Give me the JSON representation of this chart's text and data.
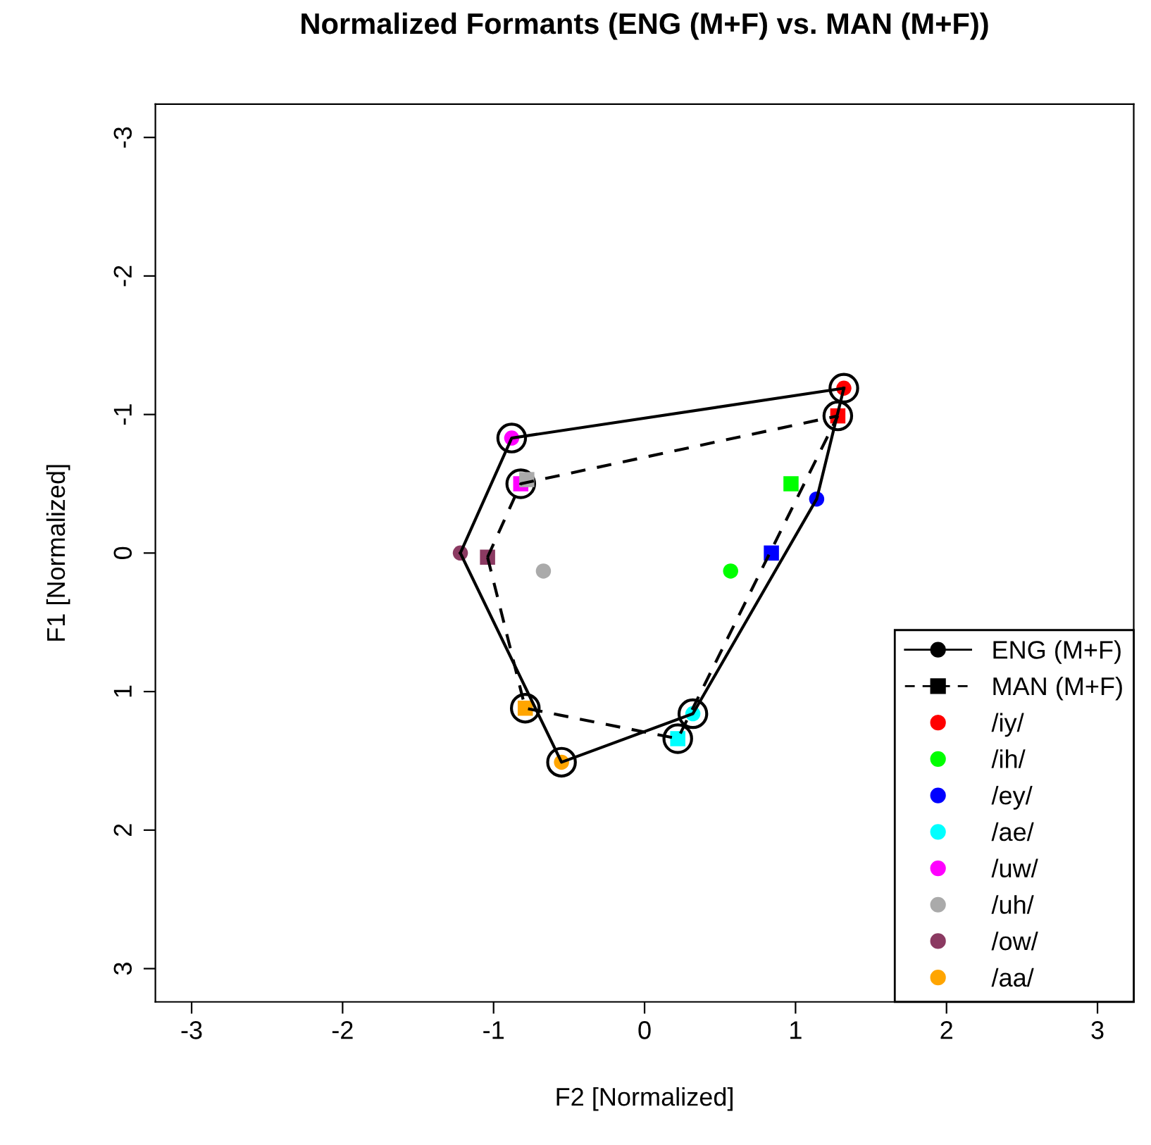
{
  "chart_data": {
    "type": "scatter",
    "title": "Normalized Formants (ENG (M+F) vs. MAN (M+F))",
    "xlabel": "F2 [Normalized]",
    "ylabel": "F1 [Normalized]",
    "xlim": [
      -3.24,
      3.24
    ],
    "ylim": [
      3.24,
      -3.24
    ],
    "xticks": [
      -3,
      -2,
      -1,
      0,
      1,
      2,
      3
    ],
    "yticks": [
      -3,
      -2,
      -1,
      0,
      1,
      2,
      3
    ],
    "grid": false,
    "legend": "bottom right",
    "series": [
      {
        "name": "ENG (M+F)",
        "type": "line",
        "color": "#000000",
        "line_style": "solid",
        "x": [
          -1.22,
          -0.55,
          0.32,
          1.14,
          1.32
        ],
        "values": [
          0.0,
          1.51,
          1.16,
          -0.39,
          -1.19
        ]
      },
      {
        "type": "line",
        "color": "#000000",
        "line_style": "solid",
        "x": [
          -1.22,
          -0.88,
          1.32
        ],
        "values": [
          0.0,
          -0.83,
          -1.19
        ]
      },
      {
        "name": "MAN (M+F)",
        "type": "line",
        "color": "#000000",
        "line_style": "dashed",
        "x": [
          -1.04,
          -0.79,
          0.22,
          1.28
        ],
        "values": [
          0.03,
          1.12,
          1.34,
          -0.99
        ]
      },
      {
        "type": "line",
        "color": "#000000",
        "line_style": "dashed",
        "x": [
          -1.04,
          -0.82,
          1.28
        ],
        "values": [
          0.03,
          -0.5,
          -0.99
        ]
      },
      {
        "color": "#000000",
        "marker": "circle",
        "x": [
          1.32,
          1.28,
          0.32,
          0.22,
          -0.55,
          -0.79,
          -0.88,
          -0.82
        ],
        "values": [
          -1.19,
          -0.99,
          1.16,
          1.34,
          1.51,
          1.12,
          -0.83,
          -0.5
        ]
      },
      {
        "marker": "square",
        "colors": [
          "#ff0000",
          "#00ff00",
          "#0000ff",
          "#00ffff",
          "#ff00ff",
          "#aaaaaa",
          "#8b3a62",
          "#ffa500"
        ],
        "x": [
          1.28,
          0.97,
          0.84,
          0.22,
          -0.82,
          -0.78,
          -1.04,
          -0.79
        ],
        "values": [
          -0.99,
          -0.5,
          0.0,
          1.34,
          -0.5,
          -0.53,
          0.03,
          1.12
        ]
      },
      {
        "name": "/iy/",
        "color": "#ff0000",
        "marker": "circle",
        "x": [
          1.32
        ],
        "values": [
          -1.19
        ]
      },
      {
        "name": "/ih/",
        "color": "#00ff00",
        "marker": "circle",
        "x": [
          0.57
        ],
        "values": [
          0.13
        ]
      },
      {
        "name": "/ey/",
        "color": "#0000ff",
        "marker": "circle",
        "x": [
          1.14
        ],
        "values": [
          -0.39
        ]
      },
      {
        "name": "/ae/",
        "color": "#00ffff",
        "marker": "circle",
        "x": [
          0.32
        ],
        "values": [
          1.16
        ]
      },
      {
        "name": "/uw/",
        "color": "#ff00ff",
        "marker": "circle",
        "x": [
          -0.88
        ],
        "values": [
          -0.83
        ]
      },
      {
        "name": "/uh/",
        "color": "#aaaaaa",
        "marker": "circle",
        "x": [
          -0.67
        ],
        "values": [
          0.13
        ]
      },
      {
        "name": "/ow/",
        "color": "#8b3a62",
        "marker": "circle",
        "x": [
          -1.22
        ],
        "values": [
          0.0
        ]
      },
      {
        "name": "/aa/",
        "color": "#ffa500",
        "marker": "circle",
        "x": [
          -0.55
        ],
        "values": [
          1.51
        ]
      }
    ]
  }
}
